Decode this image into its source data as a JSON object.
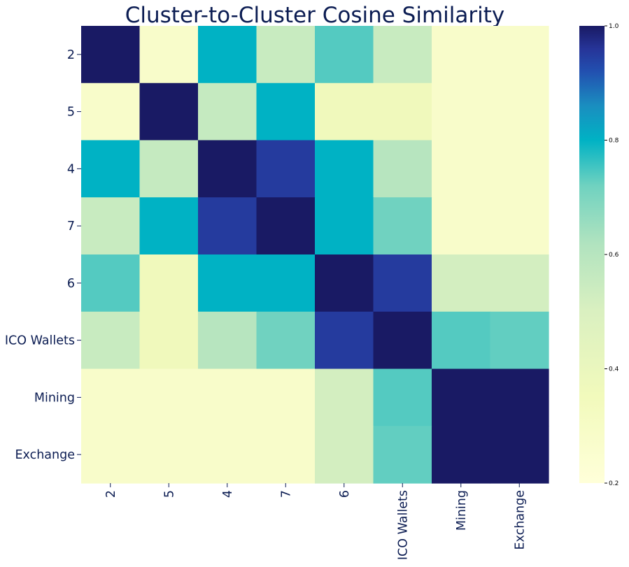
{
  "chart_data": {
    "type": "heatmap",
    "title": "Cluster-to-Cluster Cosine Similarity",
    "rows": [
      "2",
      "5",
      "4",
      "7",
      "6",
      "ICO Wallets",
      "Mining",
      "Exchange"
    ],
    "columns": [
      "2",
      "5",
      "4",
      "7",
      "6",
      "ICO Wallets",
      "Mining",
      "Exchange"
    ],
    "values": [
      [
        1.0,
        0.28,
        0.8,
        0.55,
        0.74,
        0.55,
        0.28,
        0.28
      ],
      [
        0.28,
        1.0,
        0.56,
        0.8,
        0.36,
        0.36,
        0.28,
        0.28
      ],
      [
        0.8,
        0.56,
        1.0,
        0.95,
        0.8,
        0.6,
        0.28,
        0.28
      ],
      [
        0.55,
        0.8,
        0.95,
        1.0,
        0.8,
        0.72,
        0.28,
        0.28
      ],
      [
        0.74,
        0.36,
        0.8,
        0.8,
        1.0,
        0.95,
        0.52,
        0.52
      ],
      [
        0.55,
        0.36,
        0.6,
        0.72,
        0.95,
        1.0,
        0.74,
        0.73
      ],
      [
        0.28,
        0.28,
        0.28,
        0.28,
        0.52,
        0.74,
        1.0,
        1.0
      ],
      [
        0.28,
        0.28,
        0.28,
        0.28,
        0.52,
        0.73,
        1.0,
        1.0
      ]
    ],
    "colormap": "YlGnBu",
    "colorbar": {
      "range": [
        0.2,
        1.0
      ],
      "ticks": [
        "0.2",
        "0.4",
        "0.6",
        "0.8",
        "1.0"
      ],
      "stops": [
        {
          "v": 0.2,
          "color": "#ffffd9"
        },
        {
          "v": 0.35,
          "color": "#f2fabc"
        },
        {
          "v": 0.5,
          "color": "#daf0c0"
        },
        {
          "v": 0.62,
          "color": "#b0e3bf"
        },
        {
          "v": 0.72,
          "color": "#70d2c0"
        },
        {
          "v": 0.8,
          "color": "#00b2c4"
        },
        {
          "v": 0.86,
          "color": "#1a8ec0"
        },
        {
          "v": 0.92,
          "color": "#2250b0"
        },
        {
          "v": 0.96,
          "color": "#263498"
        },
        {
          "v": 1.0,
          "color": "#191a64"
        }
      ]
    },
    "text_color": "#0b1c52"
  }
}
